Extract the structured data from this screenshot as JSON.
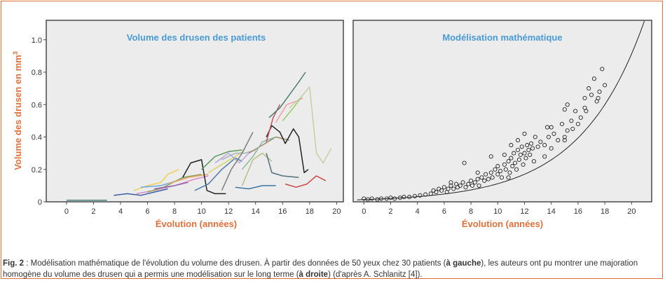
{
  "colors": {
    "frame": "#e0703c",
    "panel_bg": "#ececec",
    "panel_border": "#4a4a4a",
    "title": "#4a9ad6",
    "axis_label": "#e0703c",
    "tick": "#333333",
    "caption_text": "#333333"
  },
  "chart_data": [
    {
      "type": "line",
      "title": "Volume des drusen des patients",
      "ylabel": "Volume des drusen en mm",
      "ylabel_sup": "3",
      "xlabel": "Évolution (années)",
      "xlim": [
        -1.5,
        20.5
      ],
      "ylim": [
        0,
        1.12
      ],
      "xticks": [
        "0",
        "2",
        "4",
        "6",
        "8",
        "10",
        "12",
        "14",
        "16",
        "18",
        "20"
      ],
      "yticks": [
        "0",
        "0.2",
        "0.4",
        "0.6",
        "0.8",
        "1.0"
      ],
      "series": [
        {
          "color": "#3f7f7a",
          "points": [
            [
              0,
              0.01
            ],
            [
              3,
              0.01
            ]
          ]
        },
        {
          "color": "#3d5f9f",
          "points": [
            [
              3.5,
              0.04
            ],
            [
              4.5,
              0.05
            ],
            [
              5.5,
              0.04
            ],
            [
              6.5,
              0.06
            ],
            [
              7.5,
              0.08
            ]
          ]
        },
        {
          "color": "#f0d050",
          "points": [
            [
              5,
              0.07
            ],
            [
              6,
              0.1
            ],
            [
              7,
              0.12
            ],
            [
              7.5,
              0.17
            ],
            [
              8.3,
              0.2
            ]
          ]
        },
        {
          "color": "#d98cc8",
          "points": [
            [
              5.2,
              0.05
            ],
            [
              6.5,
              0.07
            ],
            [
              8,
              0.1
            ],
            [
              9.5,
              0.14
            ],
            [
              10.5,
              0.16
            ]
          ]
        },
        {
          "color": "#6aa8d8",
          "points": [
            [
              5.5,
              0.09
            ],
            [
              7,
              0.1
            ],
            [
              8.2,
              0.13
            ],
            [
              9.3,
              0.16
            ]
          ]
        },
        {
          "color": "#8e9e5e",
          "points": [
            [
              6,
              0.06
            ],
            [
              7.2,
              0.09
            ],
            [
              8.6,
              0.15
            ],
            [
              10,
              0.17
            ]
          ]
        },
        {
          "color": "#8a6aa8",
          "points": [
            [
              6.5,
              0.08
            ],
            [
              8,
              0.1
            ],
            [
              9,
              0.12
            ]
          ]
        },
        {
          "color": "#e8a860",
          "points": [
            [
              7.5,
              0.11
            ],
            [
              9,
              0.15
            ],
            [
              10.5,
              0.17
            ]
          ]
        },
        {
          "color": "#222222",
          "points": [
            [
              8.6,
              0.15
            ],
            [
              9.2,
              0.24
            ],
            [
              10,
              0.26
            ],
            [
              10.4,
              0.07
            ],
            [
              11,
              0.05
            ],
            [
              11.8,
              0.05
            ]
          ]
        },
        {
          "color": "#4d7ab0",
          "points": [
            [
              9.5,
              0.07
            ],
            [
              10.5,
              0.11
            ],
            [
              11.5,
              0.2
            ],
            [
              12.5,
              0.27
            ],
            [
              13,
              0.25
            ]
          ]
        },
        {
          "color": "#5a9a5a",
          "points": [
            [
              10,
              0.2
            ],
            [
              11,
              0.28
            ],
            [
              12,
              0.31
            ],
            [
              13,
              0.32
            ]
          ]
        },
        {
          "color": "#d8d860",
          "points": [
            [
              10.5,
              0.18
            ],
            [
              11.5,
              0.23
            ],
            [
              12.5,
              0.28
            ],
            [
              13.2,
              0.32
            ]
          ]
        },
        {
          "color": "#b8a8d8",
          "points": [
            [
              11,
              0.24
            ],
            [
              12,
              0.3
            ],
            [
              12.8,
              0.24
            ],
            [
              13.5,
              0.3
            ]
          ]
        },
        {
          "color": "#a0b0c0",
          "points": [
            [
              11.5,
              0.26
            ],
            [
              12.5,
              0.3
            ],
            [
              13.2,
              0.3
            ],
            [
              14,
              0.32
            ]
          ]
        },
        {
          "color": "#7f7f7f",
          "points": [
            [
              11.5,
              0.07
            ],
            [
              12.2,
              0.2
            ],
            [
              13,
              0.3
            ],
            [
              13.8,
              0.43
            ]
          ]
        },
        {
          "color": "#3a7aa8",
          "points": [
            [
              12.5,
              0.09
            ],
            [
              13.5,
              0.08
            ],
            [
              14.5,
              0.1
            ],
            [
              15.5,
              0.1
            ]
          ]
        },
        {
          "color": "#a08868",
          "points": [
            [
              13.5,
              0.3
            ],
            [
              14.5,
              0.35
            ],
            [
              15.5,
              0.4
            ],
            [
              16.5,
              0.38
            ]
          ]
        },
        {
          "color": "#88b8a0",
          "points": [
            [
              13,
              0.2
            ],
            [
              13.8,
              0.28
            ],
            [
              14.5,
              0.37
            ],
            [
              15.5,
              0.4
            ]
          ]
        },
        {
          "color": "#b8c080",
          "points": [
            [
              13,
              0.1
            ],
            [
              13.8,
              0.26
            ],
            [
              14.5,
              0.3
            ],
            [
              15.2,
              0.25
            ]
          ]
        },
        {
          "color": "#507080",
          "points": [
            [
              14.8,
              0.3
            ],
            [
              15.2,
              0.18
            ],
            [
              16,
              0.16
            ],
            [
              17.2,
              0.15
            ]
          ]
        },
        {
          "color": "#222222",
          "points": [
            [
              14.8,
              0.4
            ],
            [
              15.2,
              0.47
            ],
            [
              15.8,
              0.43
            ],
            [
              16.2,
              0.36
            ],
            [
              16.8,
              0.45
            ],
            [
              17.2,
              0.4
            ],
            [
              17.6,
              0.18
            ],
            [
              17.9,
              0.2
            ]
          ]
        },
        {
          "color": "#c0505e",
          "points": [
            [
              14.8,
              0.37
            ],
            [
              15.3,
              0.52
            ],
            [
              15.8,
              0.6
            ]
          ]
        },
        {
          "color": "#4d7f6c",
          "points": [
            [
              15,
              0.52
            ],
            [
              15.8,
              0.58
            ],
            [
              16.5,
              0.66
            ],
            [
              17.2,
              0.74
            ],
            [
              17.7,
              0.8
            ]
          ]
        },
        {
          "color": "#f0a0a8",
          "points": [
            [
              15.5,
              0.49
            ],
            [
              16.3,
              0.6
            ],
            [
              17,
              0.62
            ],
            [
              17.5,
              0.64
            ]
          ]
        },
        {
          "color": "#99cc66",
          "points": [
            [
              16,
              0.5
            ],
            [
              16.8,
              0.58
            ],
            [
              17.5,
              0.66
            ]
          ]
        },
        {
          "color": "#c8d0a0",
          "points": [
            [
              16.5,
              0.58
            ],
            [
              17.3,
              0.64
            ],
            [
              18,
              0.71
            ],
            [
              18.5,
              0.3
            ],
            [
              19,
              0.24
            ],
            [
              19.6,
              0.33
            ]
          ]
        },
        {
          "color": "#c84848",
          "points": [
            [
              16.2,
              0.11
            ],
            [
              17,
              0.09
            ],
            [
              17.8,
              0.11
            ],
            [
              18.5,
              0.16
            ],
            [
              19.2,
              0.13
            ]
          ]
        }
      ]
    },
    {
      "type": "scatter",
      "title": "Modélisation mathématique",
      "xlabel": "Évolution (années)",
      "xlim": [
        -0.8,
        21.5
      ],
      "ylim": [
        0,
        1.12
      ],
      "xticks": [
        "0",
        "2",
        "4",
        "6",
        "8",
        "10",
        "12",
        "14",
        "16",
        "18",
        "20"
      ],
      "fit_curve": {
        "formula": "0.0137 * exp(0.21 * x)",
        "a": 0.0137,
        "b": 0.21,
        "x_range": [
          -0.5,
          21.5
        ]
      },
      "points": [
        [
          0,
          0.02
        ],
        [
          0.3,
          0.015
        ],
        [
          0.6,
          0.02
        ],
        [
          1,
          0.015
        ],
        [
          1.3,
          0.02
        ],
        [
          1.7,
          0.02
        ],
        [
          2,
          0.025
        ],
        [
          2.3,
          0.02
        ],
        [
          2.7,
          0.025
        ],
        [
          3,
          0.03
        ],
        [
          3.4,
          0.03
        ],
        [
          3.8,
          0.035
        ],
        [
          4.2,
          0.04
        ],
        [
          4.6,
          0.045
        ],
        [
          5,
          0.05
        ],
        [
          5.2,
          0.07
        ],
        [
          5.4,
          0.06
        ],
        [
          5.6,
          0.08
        ],
        [
          5.8,
          0.07
        ],
        [
          6,
          0.09
        ],
        [
          6.2,
          0.06
        ],
        [
          6.3,
          0.08
        ],
        [
          6.5,
          0.1
        ],
        [
          6.7,
          0.08
        ],
        [
          6.9,
          0.11
        ],
        [
          7,
          0.09
        ],
        [
          7.2,
          0.1
        ],
        [
          7.4,
          0.12
        ],
        [
          7.6,
          0.09
        ],
        [
          7.8,
          0.11
        ],
        [
          8,
          0.13
        ],
        [
          8.1,
          0.1
        ],
        [
          8.3,
          0.12
        ],
        [
          8.5,
          0.14
        ],
        [
          8.6,
          0.1
        ],
        [
          8.8,
          0.15
        ],
        [
          9,
          0.13
        ],
        [
          9.1,
          0.17
        ],
        [
          9.3,
          0.14
        ],
        [
          9.5,
          0.18
        ],
        [
          9.6,
          0.15
        ],
        [
          9.8,
          0.2
        ],
        [
          10,
          0.17
        ],
        [
          10,
          0.22
        ],
        [
          10.2,
          0.19
        ],
        [
          10.3,
          0.15
        ],
        [
          10.5,
          0.23
        ],
        [
          10.6,
          0.2
        ],
        [
          10.8,
          0.25
        ],
        [
          10.9,
          0.18
        ],
        [
          11,
          0.27
        ],
        [
          11.1,
          0.22
        ],
        [
          11.2,
          0.3
        ],
        [
          11.3,
          0.24
        ],
        [
          11.4,
          0.2
        ],
        [
          11.5,
          0.32
        ],
        [
          11.6,
          0.26
        ],
        [
          11.7,
          0.29
        ],
        [
          11.8,
          0.34
        ],
        [
          11.9,
          0.23
        ],
        [
          12,
          0.3
        ],
        [
          12.1,
          0.27
        ],
        [
          12.2,
          0.35
        ],
        [
          12.3,
          0.32
        ],
        [
          12.4,
          0.29
        ],
        [
          12.5,
          0.36
        ],
        [
          12.6,
          0.33
        ],
        [
          12.8,
          0.4
        ],
        [
          13,
          0.34
        ],
        [
          13.2,
          0.37
        ],
        [
          13.5,
          0.35
        ],
        [
          13.7,
          0.46
        ],
        [
          13.8,
          0.4
        ],
        [
          14,
          0.33
        ],
        [
          14.2,
          0.42
        ],
        [
          14.5,
          0.38
        ],
        [
          14.8,
          0.48
        ],
        [
          15,
          0.4
        ],
        [
          15,
          0.57
        ],
        [
          15.2,
          0.44
        ],
        [
          15.2,
          0.6
        ],
        [
          15.5,
          0.5
        ],
        [
          15.6,
          0.45
        ],
        [
          15.8,
          0.56
        ],
        [
          16,
          0.48
        ],
        [
          16.2,
          0.52
        ],
        [
          16.5,
          0.64
        ],
        [
          16.6,
          0.56
        ],
        [
          16.8,
          0.7
        ],
        [
          17,
          0.66
        ],
        [
          17.2,
          0.76
        ],
        [
          17.4,
          0.62
        ],
        [
          17.6,
          0.68
        ],
        [
          17.8,
          0.82
        ],
        [
          18,
          0.72
        ],
        [
          7.5,
          0.24
        ],
        [
          9.5,
          0.28
        ],
        [
          10.5,
          0.29
        ],
        [
          11,
          0.35
        ],
        [
          12,
          0.42
        ],
        [
          13.5,
          0.28
        ],
        [
          14,
          0.46
        ],
        [
          15,
          0.38
        ],
        [
          16.5,
          0.58
        ],
        [
          17.5,
          0.64
        ],
        [
          8.5,
          0.18
        ],
        [
          6.5,
          0.12
        ],
        [
          12.7,
          0.25
        ],
        [
          11.5,
          0.38
        ],
        [
          10.8,
          0.15
        ]
      ]
    }
  ],
  "caption": {
    "label": "Fig. 2",
    "sep": " : ",
    "t1": "Modélisation mathématique de l'évolution du volume des drusen. À partir des données de 50 yeux chez 30 patients (",
    "b1": "à gauche",
    "t2": "), les auteurs ont pu montrer une majoration homogène du volume des drusen qui a permis une modélisation sur le long terme (",
    "b2": "à droite",
    "t3": ") (d'après A. Schlanitz [4])."
  }
}
